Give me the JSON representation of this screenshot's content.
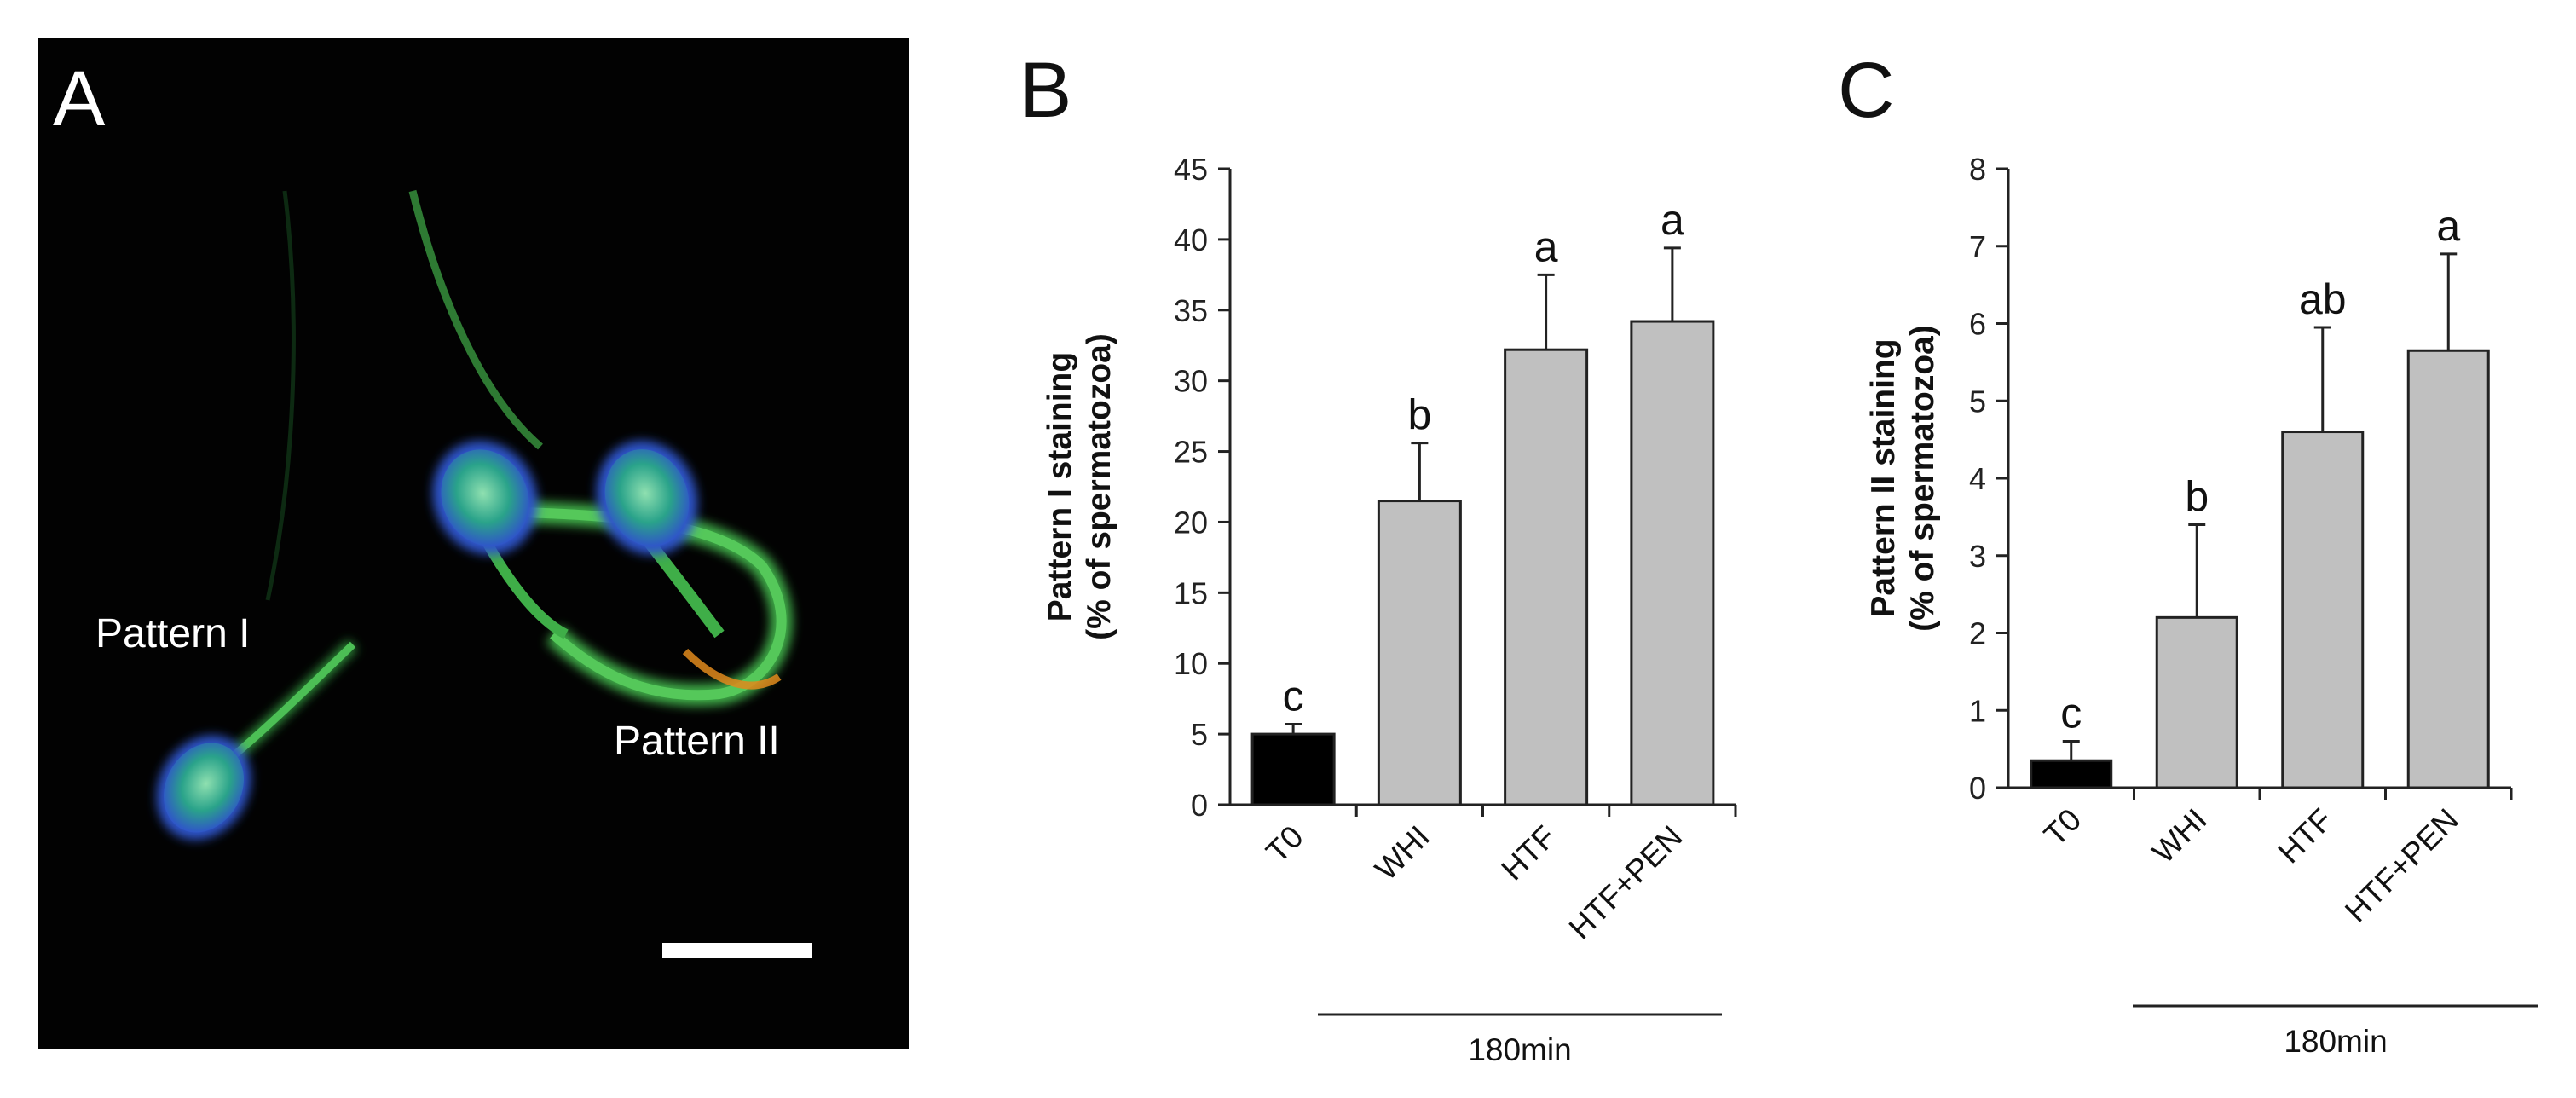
{
  "panel_a": {
    "letter": "A",
    "label_1": "Pattern I",
    "label_2": "Pattern II"
  },
  "colors": {
    "control_bar": "#000000",
    "treatment_bar": "#c0c0c0",
    "sperm_head": "#2f55c9",
    "sperm_body": "#45b84a",
    "orange_segment": "#e08a1c"
  },
  "chart_data": [
    {
      "type": "bar",
      "panel": "B",
      "categories": [
        "T0",
        "WHI",
        "HTF",
        "HTF+PEN"
      ],
      "values": [
        5.0,
        21.5,
        32.2,
        34.2
      ],
      "errors": [
        0.7,
        4.1,
        5.3,
        5.2
      ],
      "significance": [
        "c",
        "b",
        "a",
        "a"
      ],
      "ylabel_line1": "Pattern I staining",
      "ylabel_line2": "(% of spermatozoa)",
      "ylim": [
        0,
        45
      ],
      "yticks": [
        0,
        5,
        10,
        15,
        20,
        25,
        30,
        35,
        40,
        45
      ],
      "group_label": "180min"
    },
    {
      "type": "bar",
      "panel": "C",
      "categories": [
        "T0",
        "WHI",
        "HTF",
        "HTF+PEN"
      ],
      "values": [
        0.35,
        2.2,
        4.6,
        5.65
      ],
      "errors": [
        0.25,
        1.2,
        1.35,
        1.25
      ],
      "significance": [
        "c",
        "b",
        "ab",
        "a"
      ],
      "ylabel_line1": "Pattern II staining",
      "ylabel_line2": "(% of spermatozoa)",
      "ylim": [
        0,
        8
      ],
      "yticks": [
        0,
        1,
        2,
        3,
        4,
        5,
        6,
        7,
        8
      ],
      "group_label": "180min"
    }
  ]
}
